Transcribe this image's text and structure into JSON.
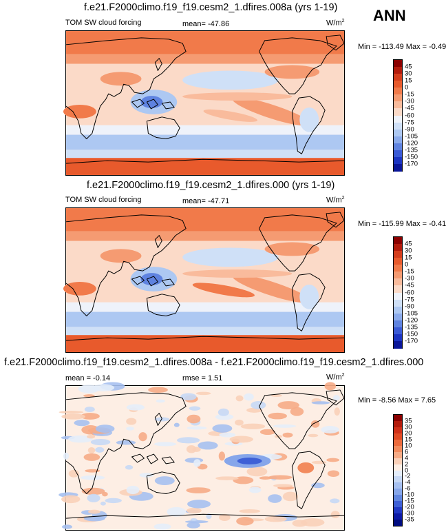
{
  "season_label": "ANN",
  "panels": [
    {
      "title": "f.e21.F2000climo.f19_f19.cesm2_1.dfires.008a (yrs 1-19)",
      "field": "TOM SW cloud forcing",
      "mean": "mean= -47.86",
      "units": "W/m",
      "units_sup": "2",
      "minmax": "Min = -113.49  Max =  -0.49",
      "colorbar": {
        "labels": [
          "45",
          "30",
          "15",
          "0",
          "-15",
          "-30",
          "-45",
          "-60",
          "-75",
          "-90",
          "-105",
          "-120",
          "-135",
          "-150",
          "-170"
        ],
        "colors": [
          "#8b0000",
          "#b31b0c",
          "#d43d1c",
          "#e85a2c",
          "#f17a4a",
          "#f59b72",
          "#f9bb9c",
          "#fbdac8",
          "#eef2fa",
          "#cfe0f7",
          "#adc8f2",
          "#8aaaeb",
          "#5f83e0",
          "#3a5ad6",
          "#1b34c2",
          "#0a1699"
        ]
      }
    },
    {
      "title": "f.e21.F2000climo.f19_f19.cesm2_1.dfires.000 (yrs 1-19)",
      "field": "TOM SW cloud forcing",
      "mean": "mean= -47.71",
      "units": "W/m",
      "units_sup": "2",
      "minmax": "Min = -115.99  Max =  -0.41",
      "colorbar": {
        "labels": [
          "45",
          "30",
          "15",
          "0",
          "-15",
          "-30",
          "-45",
          "-60",
          "-75",
          "-90",
          "-105",
          "-120",
          "-135",
          "-150",
          "-170"
        ],
        "colors": [
          "#8b0000",
          "#b31b0c",
          "#d43d1c",
          "#e85a2c",
          "#f17a4a",
          "#f59b72",
          "#f9bb9c",
          "#fbdac8",
          "#eef2fa",
          "#cfe0f7",
          "#adc8f2",
          "#8aaaeb",
          "#5f83e0",
          "#3a5ad6",
          "#1b34c2",
          "#0a1699"
        ]
      }
    },
    {
      "title": "f.e21.F2000climo.f19_f19.cesm2_1.dfires.008a - f.e21.F2000climo.f19_f19.cesm2_1.dfires.000",
      "mean": "mean =  -0.14",
      "rmse": "rmse =   1.51",
      "units": "W/m",
      "units_sup": "2",
      "minmax": "Min =  -8.56  Max =   7.65",
      "colorbar": {
        "labels": [
          "35",
          "30",
          "20",
          "15",
          "10",
          "6",
          "4",
          "2",
          "0",
          "-2",
          "-4",
          "-6",
          "-10",
          "-15",
          "-20",
          "-30",
          "-35"
        ],
        "colors": [
          "#8b0000",
          "#b31b0c",
          "#cf2f18",
          "#e04a24",
          "#ec6a3c",
          "#f28b5e",
          "#f6ab86",
          "#fad0b8",
          "#fdeee4",
          "#e4edfa",
          "#c6d8f5",
          "#a6c0f0",
          "#86a6ea",
          "#6086e0",
          "#3e60d6",
          "#2038c4",
          "#0c1aa6",
          "#000c80"
        ]
      }
    }
  ],
  "chart_data": [
    {
      "type": "heatmap",
      "title": "f.e21.F2000climo.f19_f19.cesm2_1.dfires.008a (yrs 1-19)",
      "variable": "TOM SW cloud forcing",
      "units": "W/m2",
      "mean": -47.86,
      "min": -113.49,
      "max": -0.49,
      "colorbar_levels": [
        45,
        30,
        15,
        0,
        -15,
        -30,
        -45,
        -60,
        -75,
        -90,
        -105,
        -120,
        -135,
        -150,
        -170
      ]
    },
    {
      "type": "heatmap",
      "title": "f.e21.F2000climo.f19_f19.cesm2_1.dfires.000 (yrs 1-19)",
      "variable": "TOM SW cloud forcing",
      "units": "W/m2",
      "mean": -47.71,
      "min": -115.99,
      "max": -0.41,
      "colorbar_levels": [
        45,
        30,
        15,
        0,
        -15,
        -30,
        -45,
        -60,
        -75,
        -90,
        -105,
        -120,
        -135,
        -150,
        -170
      ]
    },
    {
      "type": "heatmap",
      "title": "f.e21.F2000climo.f19_f19.cesm2_1.dfires.008a - f.e21.F2000climo.f19_f19.cesm2_1.dfires.000",
      "units": "W/m2",
      "mean": -0.14,
      "rmse": 1.51,
      "min": -8.56,
      "max": 7.65,
      "colorbar_levels": [
        35,
        30,
        20,
        15,
        10,
        6,
        4,
        2,
        0,
        -2,
        -4,
        -6,
        -10,
        -15,
        -20,
        -30,
        -35
      ]
    }
  ]
}
